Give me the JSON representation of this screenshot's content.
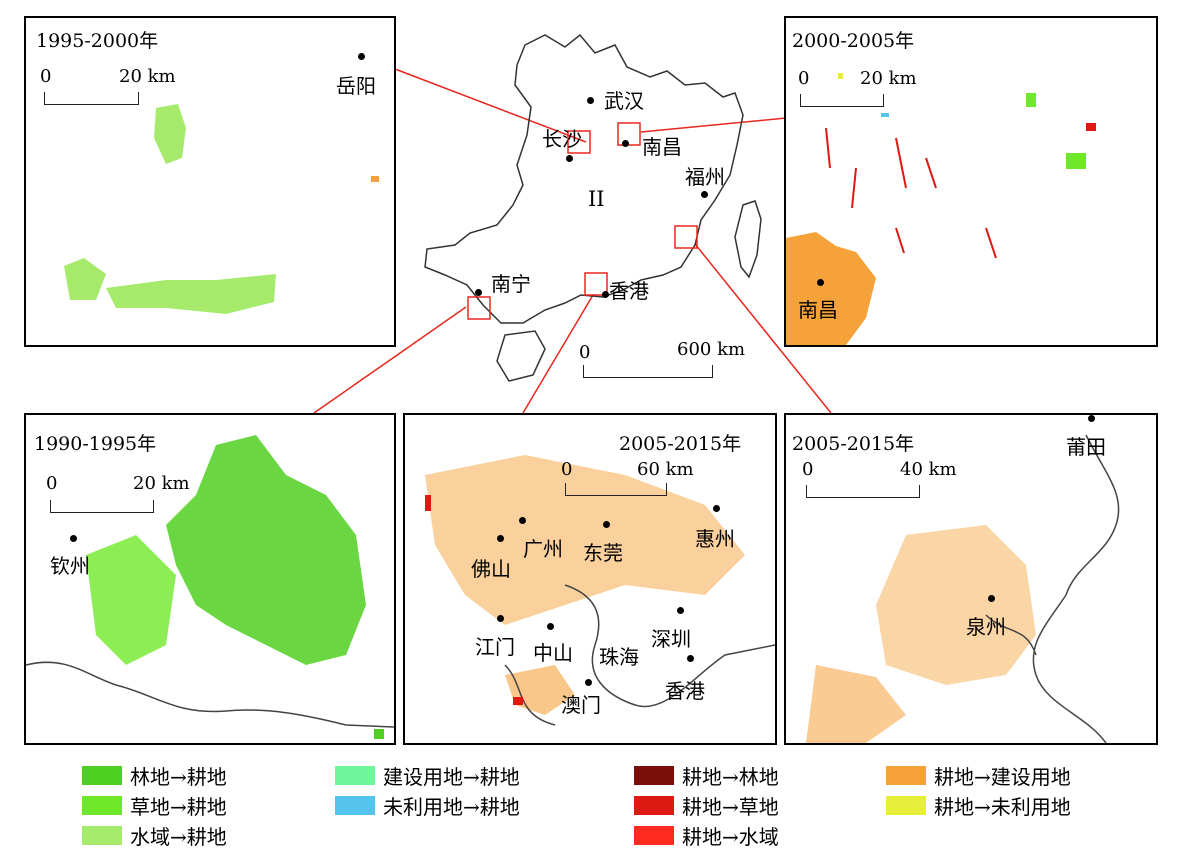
{
  "colors": {
    "forest_to_farm": "#4fcf21",
    "grass_to_farm": "#6fe82a",
    "water_to_farm": "#a6ea6c",
    "built_to_farm": "#6ff59a",
    "unused_to_farm": "#54c4ef",
    "farm_to_forest": "#7a0e0a",
    "farm_to_grass": "#dd1a12",
    "farm_to_water": "#ff2a20",
    "farm_to_built": "#f5a23a",
    "farm_to_unused": "#e6ee3a",
    "connector": "#e8281e"
  },
  "overview": {
    "region_label": "II",
    "cities": [
      "武汉",
      "长沙",
      "南昌",
      "福州",
      "南宁",
      "香港"
    ],
    "scale": {
      "zero": "0",
      "end": "600 km"
    }
  },
  "panels": {
    "p1995": {
      "title": "1995-2000年",
      "scale_zero": "0",
      "scale_end": "20 km",
      "cities": [
        "岳阳"
      ]
    },
    "p2000": {
      "title": "2000-2005年",
      "scale_zero": "0",
      "scale_end": "20 km",
      "cities": [
        "南昌"
      ]
    },
    "p1990": {
      "title": "1990-1995年",
      "scale_zero": "0",
      "scale_end": "20 km",
      "cities": [
        "钦州"
      ]
    },
    "p2005a": {
      "title": "2005-2015年",
      "scale_zero": "0",
      "scale_end": "60 km",
      "cities": [
        "广州",
        "佛山",
        "东莞",
        "惠州",
        "江门",
        "中山",
        "珠海",
        "深圳",
        "澳门",
        "香港"
      ]
    },
    "p2005b": {
      "title": "2005-2015年",
      "scale_zero": "0",
      "scale_end": "40 km",
      "cities": [
        "莆田",
        "泉州"
      ]
    }
  },
  "legend": [
    {
      "label": "林地→耕地",
      "color": "#4fcf21"
    },
    {
      "label": "草地→耕地",
      "color": "#6fe82a"
    },
    {
      "label": "水域→耕地",
      "color": "#a6ea6c"
    },
    {
      "label": "建设用地→耕地",
      "color": "#6ff59a"
    },
    {
      "label": "未利用地→耕地",
      "color": "#54c4ef"
    },
    {
      "label": "耕地→林地",
      "color": "#7a0e0a"
    },
    {
      "label": "耕地→草地",
      "color": "#dd1a12"
    },
    {
      "label": "耕地→水域",
      "color": "#ff2a20"
    },
    {
      "label": "耕地→建设用地",
      "color": "#f5a23a"
    },
    {
      "label": "耕地→未利用地",
      "color": "#e6ee3a"
    }
  ]
}
